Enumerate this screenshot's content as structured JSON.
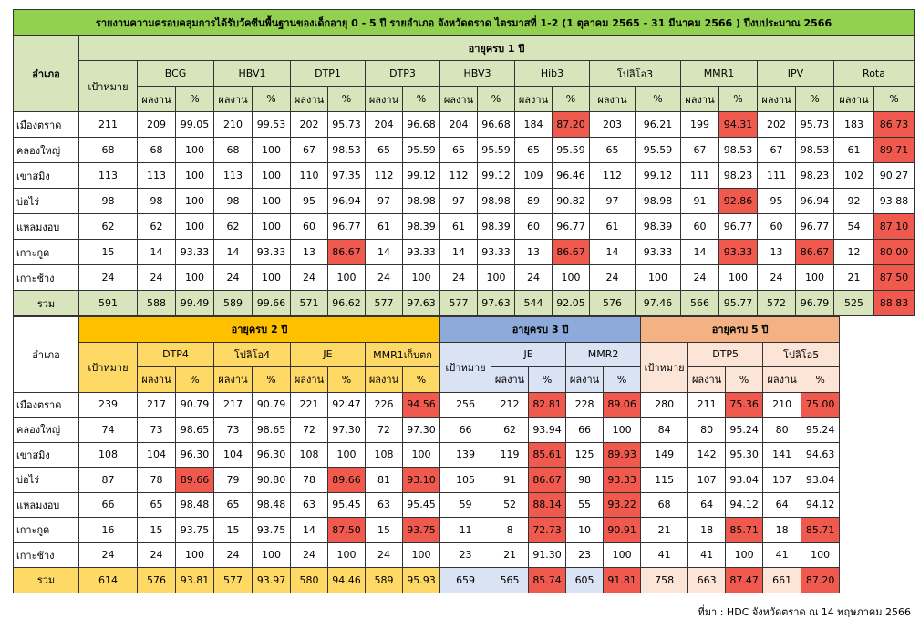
{
  "table1": {
    "title": "รายงานความครอบคลุมการได้รับวัคซีนพื้นฐานของเด็กอายุ 0 - 5 ปี รายอำเภอ จังหวัดตราด ไตรมาสที่ 1-2 (1 ตุลาคม 2565 - 31 มีนาคม 2566 ) ปีงบประมาณ 2566",
    "district_header": "อำเภอ",
    "group": "อายุครบ 1 ปี",
    "target_header": "เป้าหมาย",
    "vaccines": [
      "BCG",
      "HBV1",
      "DTP1",
      "DTP3",
      "HBV3",
      "Hib3",
      "โปลิโอ3",
      "MMR1",
      "IPV",
      "Rota"
    ],
    "sub_headers": [
      "ผลงาน",
      "%"
    ],
    "rows": [
      [
        "เมืองตราด",
        "211",
        "209",
        "99.05",
        "210",
        "99.53",
        "202",
        "95.73",
        "204",
        "96.68",
        "204",
        "96.68",
        "184",
        "87.20",
        "203",
        "96.21",
        "199",
        "94.31",
        "202",
        "95.73",
        "183",
        "86.73"
      ],
      [
        "คลองใหญ่",
        "68",
        "68",
        "100",
        "68",
        "100",
        "67",
        "98.53",
        "65",
        "95.59",
        "65",
        "95.59",
        "65",
        "95.59",
        "65",
        "95.59",
        "67",
        "98.53",
        "67",
        "98.53",
        "61",
        "89.71"
      ],
      [
        "เขาสมิง",
        "113",
        "113",
        "100",
        "113",
        "100",
        "110",
        "97.35",
        "112",
        "99.12",
        "112",
        "99.12",
        "109",
        "96.46",
        "112",
        "99.12",
        "111",
        "98.23",
        "111",
        "98.23",
        "102",
        "90.27"
      ],
      [
        "บ่อไร่",
        "98",
        "98",
        "100",
        "98",
        "100",
        "95",
        "96.94",
        "97",
        "98.98",
        "97",
        "98.98",
        "89",
        "90.82",
        "97",
        "98.98",
        "91",
        "92.86",
        "95",
        "96.94",
        "92",
        "93.88"
      ],
      [
        "แหลมงอบ",
        "62",
        "62",
        "100",
        "62",
        "100",
        "60",
        "96.77",
        "61",
        "98.39",
        "61",
        "98.39",
        "60",
        "96.77",
        "61",
        "98.39",
        "60",
        "96.77",
        "60",
        "96.77",
        "54",
        "87.10"
      ],
      [
        "เกาะกูด",
        "15",
        "14",
        "93.33",
        "14",
        "93.33",
        "13",
        "86.67",
        "14",
        "93.33",
        "14",
        "93.33",
        "13",
        "86.67",
        "14",
        "93.33",
        "14",
        "93.33",
        "13",
        "86.67",
        "12",
        "80.00"
      ],
      [
        "เกาะช้าง",
        "24",
        "24",
        "100",
        "24",
        "100",
        "24",
        "100",
        "24",
        "100",
        "24",
        "100",
        "24",
        "100",
        "24",
        "100",
        "24",
        "100",
        "24",
        "100",
        "21",
        "87.50"
      ],
      [
        "รวม",
        "591",
        "588",
        "99.49",
        "589",
        "99.66",
        "571",
        "96.62",
        "577",
        "97.63",
        "577",
        "97.63",
        "544",
        "92.05",
        "576",
        "97.46",
        "566",
        "95.77",
        "572",
        "96.79",
        "525",
        "88.83"
      ]
    ],
    "red_cells": [
      [
        13,
        17,
        21
      ],
      [
        21
      ],
      [],
      [
        17
      ],
      [
        21
      ],
      [
        7,
        13,
        17,
        19,
        21
      ],
      [
        21
      ],
      [
        21
      ]
    ]
  },
  "table2": {
    "district_header": "อำเภอ",
    "target_header": "เป้าหมาย",
    "sub_headers": [
      "ผลงาน",
      "%"
    ],
    "groups": [
      {
        "label": "อายุครบ 2 ปี",
        "vaccines": [
          "DTP4",
          "โปลิโอ4",
          "JE",
          "MMR1เก็บตก"
        ]
      },
      {
        "label": "อายุครบ 3 ปี",
        "vaccines": [
          "JE",
          "MMR2"
        ]
      },
      {
        "label": "อายุครบ 5 ปี",
        "vaccines": [
          "DTP5",
          "โปลิโอ5"
        ]
      }
    ],
    "rows": [
      [
        "เมืองตราด",
        "239",
        "217",
        "90.79",
        "217",
        "90.79",
        "221",
        "92.47",
        "226",
        "94.56",
        "256",
        "212",
        "82.81",
        "228",
        "89.06",
        "280",
        "211",
        "75.36",
        "210",
        "75.00"
      ],
      [
        "คลองใหญ่",
        "74",
        "73",
        "98.65",
        "73",
        "98.65",
        "72",
        "97.30",
        "72",
        "97.30",
        "66",
        "62",
        "93.94",
        "66",
        "100",
        "84",
        "80",
        "95.24",
        "80",
        "95.24"
      ],
      [
        "เขาสมิง",
        "108",
        "104",
        "96.30",
        "104",
        "96.30",
        "108",
        "100",
        "108",
        "100",
        "139",
        "119",
        "85.61",
        "125",
        "89.93",
        "149",
        "142",
        "95.30",
        "141",
        "94.63"
      ],
      [
        "บ่อไร่",
        "87",
        "78",
        "89.66",
        "79",
        "90.80",
        "78",
        "89.66",
        "81",
        "93.10",
        "105",
        "91",
        "86.67",
        "98",
        "93.33",
        "115",
        "107",
        "93.04",
        "107",
        "93.04"
      ],
      [
        "แหลมงอบ",
        "66",
        "65",
        "98.48",
        "65",
        "98.48",
        "63",
        "95.45",
        "63",
        "95.45",
        "59",
        "52",
        "88.14",
        "55",
        "93.22",
        "68",
        "64",
        "94.12",
        "64",
        "94.12"
      ],
      [
        "เกาะกูด",
        "16",
        "15",
        "93.75",
        "15",
        "93.75",
        "14",
        "87.50",
        "15",
        "93.75",
        "11",
        "8",
        "72.73",
        "10",
        "90.91",
        "21",
        "18",
        "85.71",
        "18",
        "85.71"
      ],
      [
        "เกาะช้าง",
        "24",
        "24",
        "100",
        "24",
        "100",
        "24",
        "100",
        "24",
        "100",
        "23",
        "21",
        "91.30",
        "23",
        "100",
        "41",
        "41",
        "100",
        "41",
        "100"
      ],
      [
        "รวม",
        "614",
        "576",
        "93.81",
        "577",
        "93.97",
        "580",
        "94.46",
        "589",
        "95.93",
        "659",
        "565",
        "85.74",
        "605",
        "91.81",
        "758",
        "663",
        "87.47",
        "661",
        "87.20"
      ]
    ],
    "red_cells": [
      [
        9,
        12,
        14,
        17,
        19
      ],
      [],
      [
        12,
        14
      ],
      [
        3,
        7,
        9,
        12,
        14
      ],
      [
        12,
        14
      ],
      [
        7,
        9,
        12,
        14,
        17,
        19
      ],
      [],
      [
        12,
        14,
        17,
        19
      ]
    ]
  },
  "highlight_color": "#f0594d",
  "source": "ที่มา : HDC จังหวัดตราด ณ 14 พฤษภาคม 2566"
}
